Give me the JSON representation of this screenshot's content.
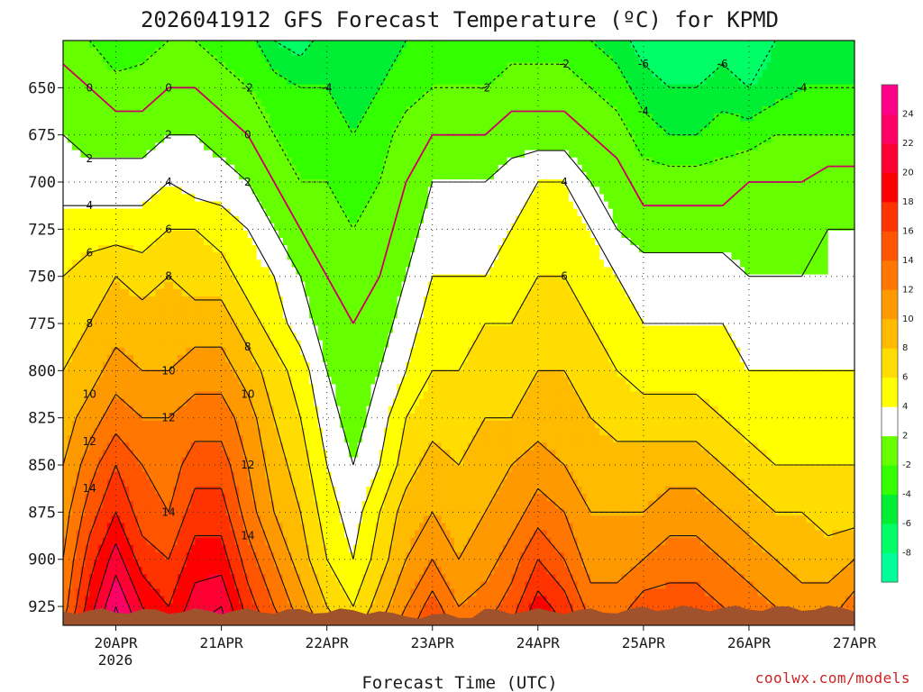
{
  "chart_data": {
    "type": "heatmap",
    "title": "2026041912 GFS Forecast Temperature (ºC) for KPMD",
    "xlabel": "Forecast Time (UTC)",
    "ylabel": "",
    "credit": "coolwx.com/models",
    "y_axis": {
      "unit": "hPa",
      "range": [
        625,
        935
      ],
      "inverted": true,
      "ticks": [
        "650",
        "675",
        "700",
        "725",
        "750",
        "775",
        "800",
        "825",
        "850",
        "875",
        "900",
        "925"
      ]
    },
    "x_axis": {
      "ticks": [
        "20APR",
        "21APR",
        "22APR",
        "23APR",
        "24APR",
        "25APR",
        "26APR",
        "27APR"
      ],
      "tick_hours": [
        12,
        36,
        60,
        84,
        108,
        132,
        156,
        180
      ],
      "year_label": "2026",
      "range_hours": [
        0,
        180
      ]
    },
    "colorbar": {
      "levels": [
        -10,
        -8,
        -6,
        -4,
        -2,
        2,
        4,
        6,
        8,
        10,
        12,
        14,
        16,
        18,
        20,
        22,
        24,
        26
      ],
      "colors": [
        "#00ff99",
        "#00ff66",
        "#00ee33",
        "#33ff00",
        "#66ff00",
        "#ffffff",
        "#ffff00",
        "#ffdd00",
        "#ffbb00",
        "#ff9900",
        "#ff7700",
        "#ff5500",
        "#ff3300",
        "#ff0000",
        "#ff0033",
        "#ff0066",
        "#ff0088"
      ],
      "tick_labels": [
        "-8",
        "-6",
        "-4",
        "-2",
        "2",
        "4",
        "6",
        "8",
        "10",
        "12",
        "14",
        "16",
        "18",
        "20",
        "22",
        "24"
      ],
      "tick_values": [
        -8,
        -6,
        -4,
        -2,
        2,
        4,
        6,
        8,
        10,
        12,
        14,
        16,
        18,
        20,
        22,
        24
      ]
    },
    "hours": [
      0,
      6,
      12,
      18,
      24,
      30,
      36,
      42,
      48,
      54,
      60,
      66,
      72,
      78,
      84,
      90,
      96,
      102,
      108,
      114,
      120,
      126,
      132,
      138,
      144,
      150,
      156,
      162,
      168,
      174,
      180
    ],
    "levels_hpa": [
      625,
      650,
      675,
      700,
      725,
      750,
      775,
      800,
      825,
      850,
      875,
      900,
      925,
      935
    ],
    "temperature_c": [
      [
        -1,
        -2,
        -4,
        -3,
        -2,
        -2,
        -3,
        -3,
        -6,
        -7,
        -5,
        -6,
        -5,
        -4,
        -3,
        -3,
        -4,
        -3,
        -3,
        -3,
        -4,
        -5,
        -7,
        -8,
        -8,
        -7,
        -8,
        -6,
        -6,
        -6,
        -6
      ],
      [
        1,
        0,
        -1,
        -1,
        0,
        0,
        -1,
        -2,
        -3,
        -4,
        -4,
        -5,
        -4,
        -3,
        -2,
        -2,
        -2,
        -1,
        -1,
        -1,
        -2,
        -3,
        -5,
        -6,
        -6,
        -5,
        -6,
        -5,
        -4,
        -4,
        -4
      ],
      [
        2,
        1,
        1,
        1,
        2,
        2,
        1,
        0,
        -2,
        -3,
        -3,
        -4,
        -3,
        -1,
        0,
        0,
        0,
        1,
        1,
        1,
        0,
        -1,
        -3,
        -4,
        -4,
        -3,
        -3,
        -2,
        -2,
        -2,
        -2
      ],
      [
        3,
        3,
        3,
        3,
        4,
        3,
        3,
        2,
        0,
        -2,
        -2,
        -3,
        -2,
        0,
        2,
        2,
        2,
        3,
        4,
        4,
        2,
        1,
        -1,
        -1,
        -1,
        -1,
        0,
        0,
        0,
        1,
        1
      ],
      [
        5,
        5,
        5,
        5,
        6,
        6,
        5,
        4,
        2,
        0,
        -1,
        -2,
        -1,
        1,
        3,
        3,
        3,
        4,
        5,
        5,
        4,
        2,
        1,
        1,
        1,
        1,
        1,
        1,
        1,
        2,
        2
      ],
      [
        6,
        7,
        8,
        7,
        8,
        7,
        7,
        5,
        4,
        2,
        0,
        -1,
        0,
        2,
        4,
        4,
        4,
        5,
        6,
        6,
        5,
        4,
        3,
        3,
        3,
        3,
        2,
        2,
        2,
        2,
        2
      ],
      [
        7,
        8,
        9,
        9,
        9,
        9,
        9,
        7,
        5,
        3,
        1,
        0,
        1,
        3,
        5,
        5,
        6,
        6,
        7,
        7,
        6,
        5,
        4,
        4,
        4,
        4,
        3,
        3,
        3,
        3,
        3
      ],
      [
        8,
        9,
        11,
        10,
        10,
        11,
        11,
        9,
        7,
        5,
        2,
        1,
        2,
        4,
        6,
        6,
        7,
        7,
        8,
        8,
        7,
        6,
        5,
        5,
        5,
        5,
        4,
        4,
        4,
        4,
        4
      ],
      [
        9,
        11,
        13,
        12,
        12,
        13,
        13,
        11,
        8,
        6,
        3,
        1,
        3,
        6,
        7,
        7,
        8,
        8,
        9,
        9,
        8,
        7,
        7,
        7,
        7,
        6,
        5,
        5,
        5,
        5,
        5
      ],
      [
        10,
        13,
        16,
        14,
        13,
        15,
        15,
        12,
        9,
        7,
        4,
        2,
        4,
        7,
        9,
        8,
        9,
        10,
        11,
        10,
        9,
        9,
        9,
        9,
        9,
        8,
        7,
        6,
        6,
        6,
        6
      ],
      [
        11,
        15,
        18,
        15,
        14,
        17,
        17,
        13,
        10,
        8,
        5,
        3,
        6,
        9,
        10,
        9,
        10,
        11,
        13,
        12,
        10,
        10,
        10,
        11,
        11,
        10,
        9,
        8,
        8,
        7,
        7
      ],
      [
        12,
        17,
        21,
        17,
        16,
        19,
        19,
        15,
        12,
        9,
        6,
        4,
        7,
        10,
        12,
        10,
        11,
        13,
        16,
        14,
        11,
        11,
        12,
        13,
        13,
        12,
        11,
        10,
        9,
        9,
        10
      ],
      [
        13,
        19,
        24,
        20,
        18,
        21,
        22,
        17,
        14,
        11,
        8,
        6,
        9,
        12,
        15,
        12,
        13,
        15,
        19,
        17,
        13,
        13,
        15,
        15,
        15,
        14,
        13,
        12,
        11,
        11,
        13
      ],
      [
        14,
        20,
        25,
        21,
        19,
        22,
        23,
        18,
        15,
        12,
        9,
        7,
        10,
        13,
        16,
        13,
        14,
        16,
        20,
        18,
        14,
        14,
        16,
        16,
        16,
        15,
        14,
        13,
        12,
        12,
        14
      ]
    ],
    "contour_lines": [
      -6,
      -4,
      -2,
      0,
      2,
      4,
      6,
      8,
      10,
      12,
      14,
      16,
      18,
      20,
      22,
      24
    ],
    "contour_labels_shown": [
      "-6",
      "-4",
      "-2",
      "0",
      "2",
      "4",
      "6",
      "8",
      "10",
      "12",
      "14"
    ],
    "ground_color": "#a0522d",
    "zero_line_color": "#cc0066"
  }
}
